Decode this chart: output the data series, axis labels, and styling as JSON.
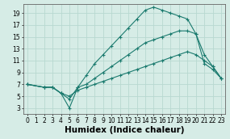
{
  "bg_color": "#d6ece6",
  "grid_color": "#b8d8d0",
  "line_color": "#1a7a6e",
  "xlabel": "Humidex (Indice chaleur)",
  "xlabel_fontsize": 7.5,
  "xlim": [
    -0.5,
    23.5
  ],
  "ylim": [
    2,
    20.5
  ],
  "xticks": [
    0,
    1,
    2,
    3,
    4,
    5,
    6,
    7,
    8,
    9,
    10,
    11,
    12,
    13,
    14,
    15,
    16,
    17,
    18,
    19,
    20,
    21,
    22,
    23
  ],
  "yticks": [
    3,
    5,
    7,
    9,
    11,
    13,
    15,
    17,
    19
  ],
  "tick_fontsize": 5.5,
  "lines": [
    {
      "x": [
        0,
        2,
        3,
        4,
        5,
        6,
        7,
        8,
        9,
        10,
        11,
        12,
        13,
        14,
        15,
        16,
        17,
        18,
        19,
        20,
        21,
        22,
        23
      ],
      "y": [
        7,
        6.5,
        6.5,
        5.5,
        5.0,
        6.0,
        6.5,
        7.0,
        7.5,
        8.0,
        8.5,
        9.0,
        9.5,
        10.0,
        10.5,
        11.0,
        11.5,
        12.0,
        12.5,
        12.0,
        11.0,
        10.0,
        8.0
      ]
    },
    {
      "x": [
        0,
        2,
        3,
        4,
        5,
        6,
        7,
        8,
        9,
        10,
        11,
        12,
        13,
        14,
        15,
        16,
        17,
        18,
        19,
        20,
        21,
        22,
        23
      ],
      "y": [
        7,
        6.5,
        6.5,
        5.5,
        4.5,
        6.5,
        7.0,
        8.0,
        9.0,
        10.0,
        11.0,
        12.0,
        13.0,
        14.0,
        14.5,
        15.0,
        15.5,
        16.0,
        16.0,
        15.5,
        12.0,
        10.0,
        8.0
      ]
    },
    {
      "x": [
        0,
        2,
        3,
        4,
        5,
        6,
        7,
        8,
        9,
        10,
        11,
        12,
        13,
        14,
        15,
        16,
        17,
        18,
        19,
        20,
        21,
        22,
        23
      ],
      "y": [
        7,
        6.5,
        6.5,
        5.5,
        3.0,
        6.5,
        8.5,
        10.5,
        12.0,
        13.5,
        15.0,
        16.5,
        18.0,
        19.5,
        20.0,
        19.5,
        19.0,
        18.5,
        18.0,
        15.5,
        10.5,
        9.5,
        8.0
      ]
    }
  ]
}
